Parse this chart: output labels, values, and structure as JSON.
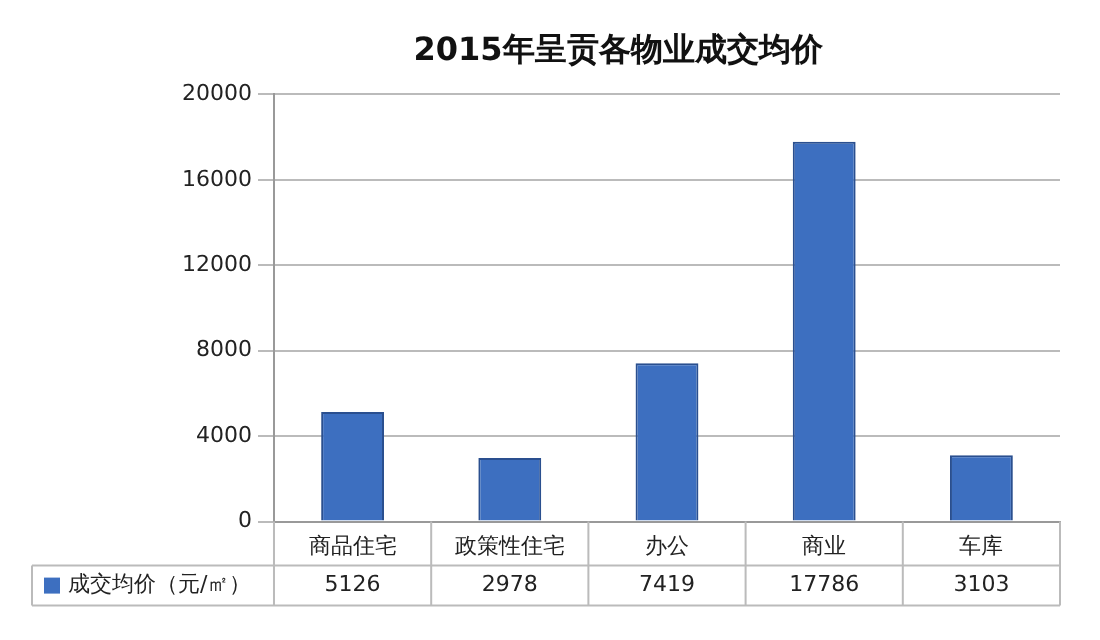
{
  "chart_data": {
    "type": "bar",
    "title": "2015年呈贡各物业成交均价",
    "categories": [
      "商品住宅",
      "政策性住宅",
      "办公",
      "商业",
      "车库"
    ],
    "series": [
      {
        "name": "成交均价（元/㎡）",
        "color": "#3d6fc0",
        "values": [
          5126,
          2978,
          7419,
          17786,
          3103
        ]
      }
    ],
    "ylim": [
      0,
      20000
    ],
    "yticks": [
      0,
      4000,
      8000,
      12000,
      16000,
      20000
    ],
    "grid": "y",
    "legend": "bottom",
    "data_labels": true
  }
}
